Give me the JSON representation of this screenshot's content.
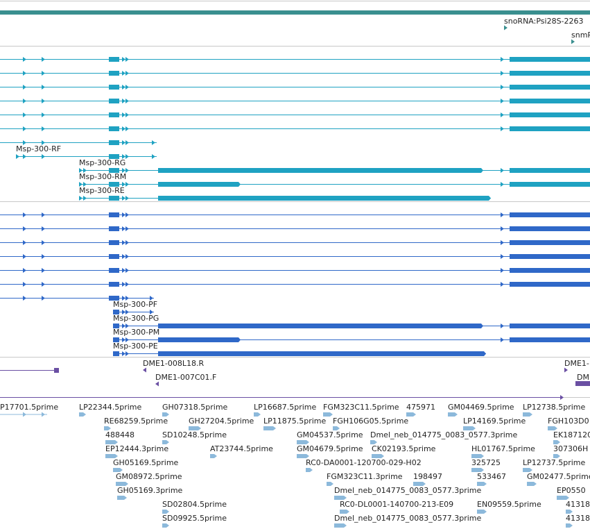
{
  "colors": {
    "ncrna_track": "#3a8f8f",
    "transcript": "#1fa2c2",
    "protein": "#2f68c8",
    "clone_end": "#6a4fa3",
    "est": "#8cb9db",
    "divider": "#c8c8c8"
  },
  "ncrna": {
    "snoRNA_label": "snoRNA:Psi28S-2263",
    "snm_label": "snmR"
  },
  "transcripts": {
    "labels": [
      "Msp-300-RF",
      "Msp-300-RG",
      "Msp-300-RM",
      "Msp-300-RE"
    ]
  },
  "proteins": {
    "labels": [
      "Msp-300-PF",
      "Msp-300-PG",
      "Msp-300-PM",
      "Msp-300-PE"
    ]
  },
  "clone_ends": {
    "labels": [
      "DME1-008L18.R",
      "DME1-007C01.F",
      "DME1-",
      "DM"
    ]
  },
  "ests": [
    "P17701.5prime",
    "LP22344.5prime",
    "GH07318.5prime",
    "LP16687.5prime",
    "FGM323C11.5prime",
    "475971",
    "GM04469.5prime",
    "LP12738.5prime",
    "RE68259.5prime",
    "GH27204.5prime",
    "LP11875.5prime",
    "FGH106G05.5prime",
    "LP14169.5prime",
    "FGH103D0",
    "488448",
    "SD10248.5prime",
    "GM04537.5prime",
    "Dmel_neb_014775_0083_0577.3prime",
    "EK187120",
    "EP12444.3prime",
    "AT23744.5prime",
    "GM04679.5prime",
    "CK02193.5prime",
    "HL01767.5prime",
    "307306H",
    "GH05169.5prime",
    "RC0-DA0001-120700-029-H02",
    "325725",
    "LP12737.5prime",
    "GM08972.5prime",
    "FGM323C11.3prime",
    "198497",
    "533467",
    "GM02477.5prime",
    "GH05169.3prime",
    "Dmel_neb_014775_0083_0577.3prime",
    "EP0550",
    "SD02804.5prime",
    "RC0-DL0001-140700-213-E09",
    "EN09559.5prime",
    "41318",
    "SD09925.5prime",
    "Dmel_neb_014775_0083_0577.3prime",
    "41318"
  ]
}
